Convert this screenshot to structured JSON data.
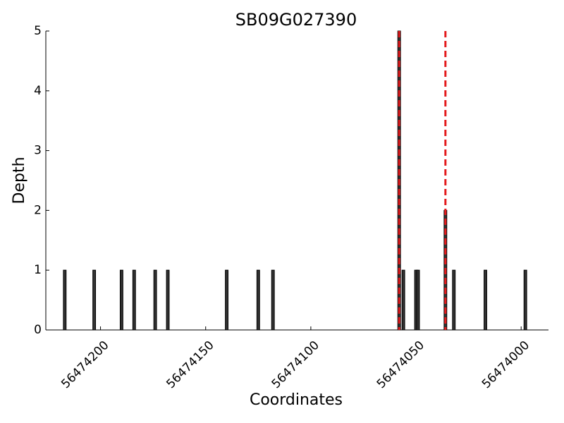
{
  "chart_data": {
    "type": "bar",
    "title": "SB09G027390",
    "x_label": "Coordinates",
    "y_label": "Depth",
    "x": [
      56474217,
      56474203,
      56474190,
      56474184,
      56474174,
      56474168,
      56474140,
      56474125,
      56474118,
      56474058,
      56474056,
      56474050,
      56474049,
      56474036,
      56474032,
      56474017,
      56473998
    ],
    "values": [
      1,
      1,
      1,
      1,
      1,
      1,
      1,
      1,
      1,
      5,
      1,
      1,
      1,
      2,
      1,
      1,
      1
    ],
    "color": "#333333",
    "xlim": [
      56474226,
      56473987
    ],
    "xticks": [
      56474200,
      56474150,
      56474100,
      56474050,
      56474000
    ],
    "ylim": [
      0,
      5
    ],
    "yticks": [
      0,
      1,
      2,
      3,
      4,
      5
    ],
    "vlines": [
      56474058,
      56474036
    ],
    "vline_color": "#e41a1c"
  }
}
